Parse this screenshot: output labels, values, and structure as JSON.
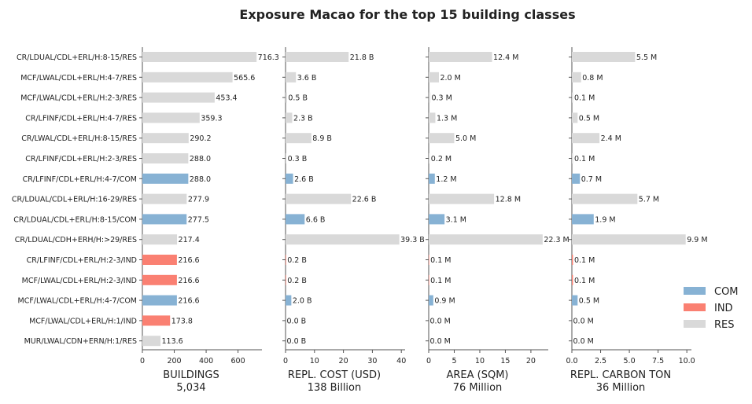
{
  "figure": {
    "title": "Exposure Macao for the top 15 building classes"
  },
  "categories": [
    "CR/LDUAL/CDL+ERL/H:8-15/RES",
    "MCF/LWAL/CDL+ERL/H:4-7/RES",
    "MCF/LWAL/CDL+ERL/H:2-3/RES",
    "CR/LFINF/CDL+ERL/H:4-7/RES",
    "CR/LWAL/CDL+ERL/H:8-15/RES",
    "CR/LFINF/CDL+ERL/H:2-3/RES",
    "CR/LFINF/CDL+ERL/H:4-7/COM",
    "CR/LDUAL/CDL+ERL/H:16-29/RES",
    "CR/LDUAL/CDL+ERL/H:8-15/COM",
    "CR/LDUAL/CDH+ERH/H:>29/RES",
    "CR/LFINF/CDL+ERL/H:2-3/IND",
    "MCF/LWAL/CDL+ERL/H:2-3/IND",
    "MCF/LWAL/CDL+ERL/H:4-7/COM",
    "MCF/LWAL/CDL+ERL/H:1/IND",
    "MUR/LWAL/CDN+ERN/H:1/RES"
  ],
  "occupancy": [
    "RES",
    "RES",
    "RES",
    "RES",
    "RES",
    "RES",
    "COM",
    "RES",
    "COM",
    "RES",
    "IND",
    "IND",
    "COM",
    "IND",
    "RES"
  ],
  "legend": [
    {
      "name": "COM",
      "color": "#87b2d4"
    },
    {
      "name": "IND",
      "color": "#fa8072"
    },
    {
      "name": "RES",
      "color": "#d9d9d9"
    }
  ],
  "chart_data": [
    {
      "type": "bar",
      "xlabel": "BUILDINGS",
      "total": "5,034",
      "xlim": [
        0,
        750
      ],
      "ticks": [
        0,
        200,
        400,
        600
      ],
      "tick_labels": [
        "0",
        "200",
        "400",
        "600"
      ],
      "values": [
        716.3,
        565.6,
        453.4,
        359.3,
        290.2,
        288.0,
        288.0,
        277.9,
        277.5,
        217.4,
        216.6,
        216.6,
        216.6,
        173.8,
        113.6
      ],
      "labels": [
        "716.3",
        "565.6",
        "453.4",
        "359.3",
        "290.2",
        "288.0",
        "288.0",
        "277.9",
        "277.5",
        "217.4",
        "216.6",
        "216.6",
        "216.6",
        "173.8",
        "113.6"
      ]
    },
    {
      "type": "bar",
      "xlabel": "REPL. COST (USD)",
      "total": "138 Billion",
      "xlim": [
        0,
        41.3
      ],
      "ticks": [
        0,
        10,
        20,
        30,
        40
      ],
      "tick_labels": [
        "0",
        "10",
        "20",
        "30",
        "40"
      ],
      "values": [
        21.8,
        3.6,
        0.5,
        2.3,
        8.9,
        0.3,
        2.6,
        22.6,
        6.6,
        39.3,
        0.2,
        0.2,
        2.0,
        0.0,
        0.0
      ],
      "labels": [
        "21.8 B",
        "3.6 B",
        "0.5 B",
        "2.3 B",
        "8.9 B",
        "0.3 B",
        "2.6 B",
        "22.6 B",
        "6.6 B",
        "39.3 B",
        "0.2 B",
        "0.2 B",
        "2.0 B",
        "0.0 B",
        "0.0 B"
      ]
    },
    {
      "type": "bar",
      "xlabel": "AREA (SQM)",
      "total": "76 Million",
      "xlim": [
        0,
        23.4
      ],
      "ticks": [
        0,
        5,
        10,
        15,
        20
      ],
      "tick_labels": [
        "0",
        "5",
        "10",
        "15",
        "20"
      ],
      "values": [
        12.4,
        2.0,
        0.3,
        1.3,
        5.0,
        0.2,
        1.2,
        12.8,
        3.1,
        22.3,
        0.1,
        0.1,
        0.9,
        0.0,
        0.0
      ],
      "labels": [
        "12.4 M",
        "2.0 M",
        "0.3 M",
        "1.3 M",
        "5.0 M",
        "0.2 M",
        "1.2 M",
        "12.8 M",
        "3.1 M",
        "22.3 M",
        "0.1 M",
        "0.1 M",
        "0.9 M",
        "0.0 M",
        "0.0 M"
      ]
    },
    {
      "type": "bar",
      "xlabel": "REPL. CARBON TON",
      "total": "36 Million",
      "xlim": [
        0,
        10.4
      ],
      "ticks": [
        0,
        2.5,
        5,
        7.5,
        10
      ],
      "tick_labels": [
        "0.0",
        "2.5",
        "5.0",
        "7.5",
        "10.0"
      ],
      "values": [
        5.5,
        0.8,
        0.1,
        0.5,
        2.4,
        0.1,
        0.7,
        5.7,
        1.9,
        9.9,
        0.1,
        0.1,
        0.5,
        0.0,
        0.0
      ],
      "labels": [
        "5.5 M",
        "0.8 M",
        "0.1 M",
        "0.5 M",
        "2.4 M",
        "0.1 M",
        "0.7 M",
        "5.7 M",
        "1.9 M",
        "9.9 M",
        "0.1 M",
        "0.1 M",
        "0.5 M",
        "0.0 M",
        "0.0 M"
      ]
    }
  ]
}
